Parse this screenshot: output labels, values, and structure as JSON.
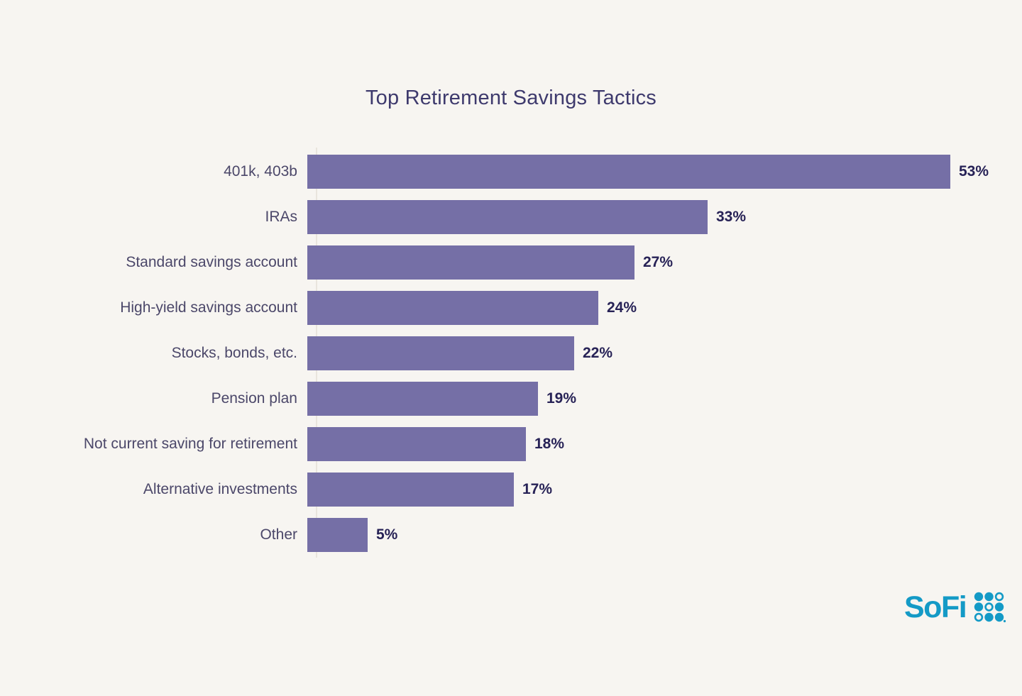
{
  "title": "Top Retirement Savings Tactics",
  "chart_data": {
    "type": "bar",
    "orientation": "horizontal",
    "title": "Top Retirement Savings Tactics",
    "categories": [
      "401k, 403b",
      "IRAs",
      "Standard savings account",
      "High-yield savings account",
      "Stocks, bonds, etc.",
      "Pension plan",
      "Not current saving for retirement",
      "Alternative investments",
      "Other"
    ],
    "values": [
      53,
      33,
      27,
      24,
      22,
      19,
      18,
      17,
      5
    ],
    "value_suffix": "%",
    "xlim": [
      0,
      55
    ],
    "xlabel": "",
    "ylabel": "",
    "grid": false,
    "legend": false,
    "data_labels": true,
    "bar_color": "#756fa6"
  },
  "branding": {
    "logo_text": "SoFi",
    "logo_color": "#149ac6",
    "dot_grid": [
      [
        1,
        1,
        0
      ],
      [
        1,
        0,
        1
      ],
      [
        0,
        1,
        1
      ]
    ]
  },
  "colors": {
    "background": "#f7f5f1",
    "bar": "#756fa6",
    "title": "#3e3a6d",
    "category_label": "#4b4769",
    "value_label": "#272256",
    "axis_line": "#e9e5dd"
  }
}
